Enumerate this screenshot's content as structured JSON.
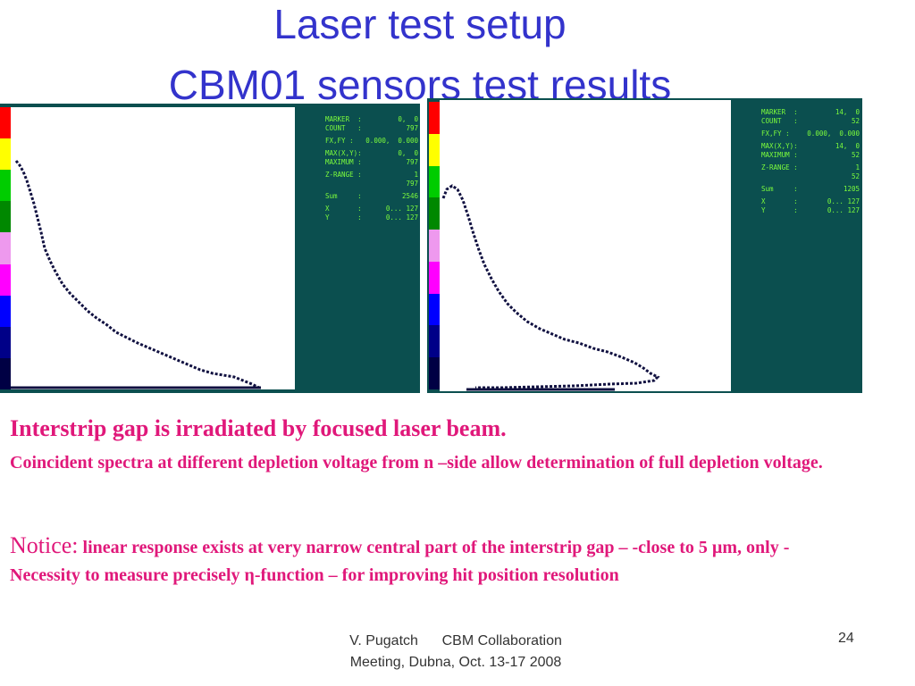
{
  "title": {
    "line1": "Laser test setup",
    "line2": "CBM01 sensors test results"
  },
  "colorbar_colors": [
    "#ff0000",
    "#ffff00",
    "#00cc00",
    "#008800",
    "#ee99ee",
    "#ff00ff",
    "#0000ff",
    "#000088",
    "#000044"
  ],
  "left_panel": {
    "readout": [
      {
        "label": "MARKER  :",
        "value": "0,  0"
      },
      {
        "label": "COUNT   :",
        "value": "797"
      },
      {
        "label": "FX,FY :",
        "value": "0.000,  0.000"
      },
      {
        "label": "MAX(X,Y):",
        "value": "0,  0"
      },
      {
        "label": "MAXIMUM :",
        "value": "797"
      },
      {
        "label": "Z-RANGE :",
        "value": "1"
      },
      {
        "label": "",
        "value": "797"
      },
      {
        "label": "Sum     :",
        "value": "2546"
      },
      {
        "label": "X       :",
        "value": "0... 127"
      },
      {
        "label": "Y       :",
        "value": "0... 127"
      }
    ]
  },
  "right_panel": {
    "readout": [
      {
        "label": "MARKER  :",
        "value": "14,  0"
      },
      {
        "label": "COUNT   :",
        "value": "52"
      },
      {
        "label": "FX,FY :",
        "value": "0.000,  0.000"
      },
      {
        "label": "MAX(X,Y):",
        "value": "14,  0"
      },
      {
        "label": "MAXIMUM :",
        "value": "52"
      },
      {
        "label": "Z-RANGE :",
        "value": "1"
      },
      {
        "label": "",
        "value": "52"
      },
      {
        "label": "Sum     :",
        "value": "1205"
      },
      {
        "label": "X       :",
        "value": "0... 127"
      },
      {
        "label": "Y       :",
        "value": "0... 127"
      }
    ]
  },
  "body": {
    "para1": "Interstrip gap is irradiated by focused laser beam.",
    "para2": "Coincident spectra at different depletion voltage from n –side allow determination of full depletion voltage.",
    "notice_label": "Notice:",
    "notice_text": " linear response exists at very narrow central part of the interstrip gap – -close to 5 µm, only - Necessity to measure precisely η-function – for improving hit position resolution"
  },
  "footer": {
    "author_line1": "V. Pugatch      CBM Collaboration",
    "author_line2": "Meeting, Dubna, Oct. 13-17 2008",
    "page_number": "24"
  }
}
